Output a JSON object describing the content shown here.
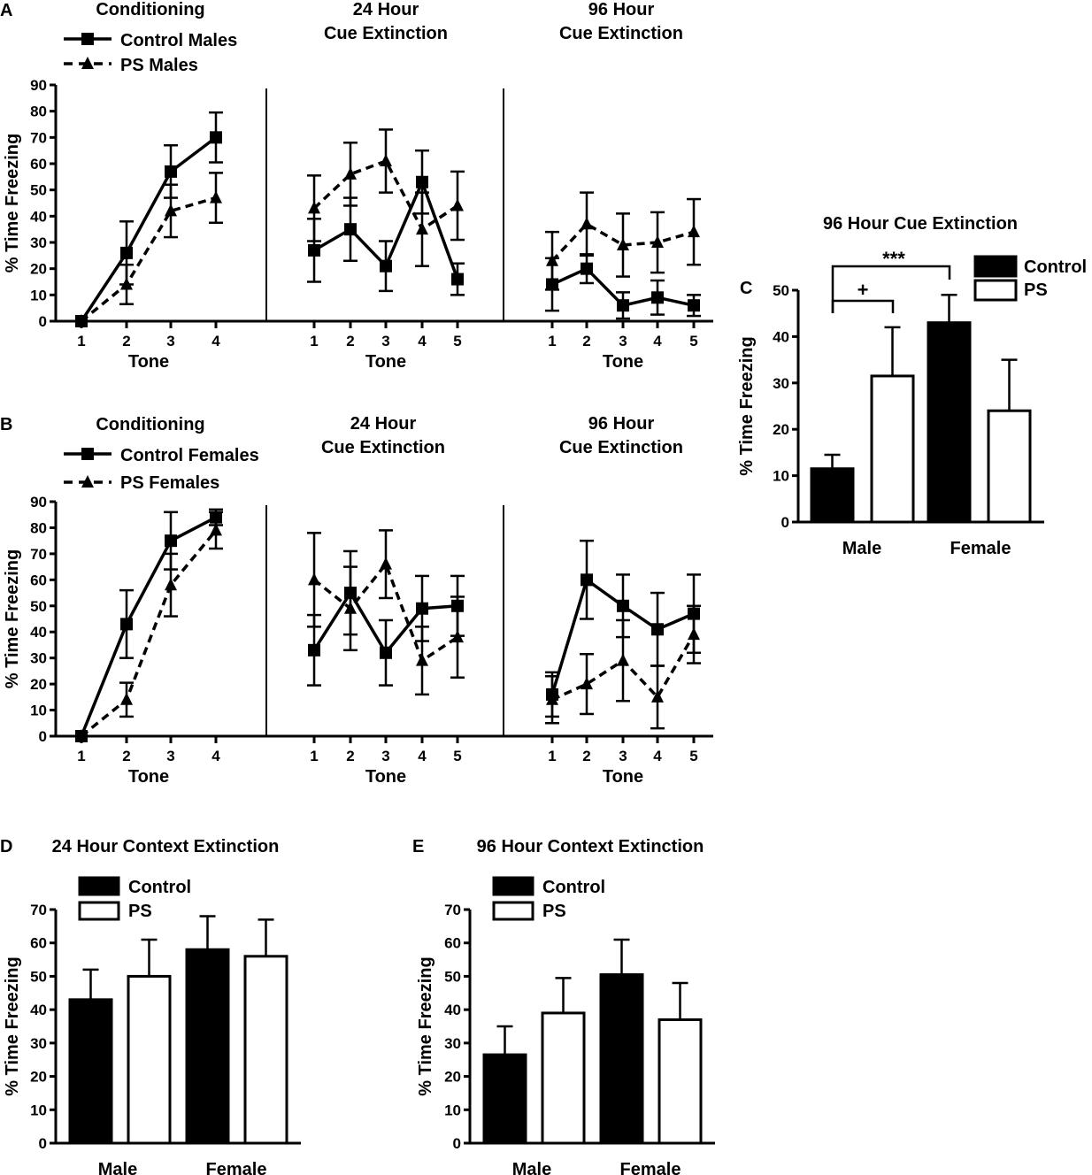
{
  "figure": {
    "panels": {
      "A": {
        "letter": "A",
        "conditioning_title": "Conditioning",
        "ext24_title": [
          "24 Hour",
          "Cue Extinction"
        ],
        "ext96_title": [
          "96 Hour",
          "Cue Extinction"
        ],
        "legend": [
          {
            "label": "Control Males",
            "style": "solid",
            "marker": "square"
          },
          {
            "label": "PS Males",
            "style": "dashed",
            "marker": "triangle"
          }
        ]
      },
      "B": {
        "letter": "B",
        "conditioning_title": "Conditioning",
        "ext24_title": [
          "24 Hour",
          "Cue Extinction"
        ],
        "ext96_title": [
          "96 Hour",
          "Cue Extinction"
        ],
        "legend": [
          {
            "label": "Control Females",
            "style": "solid",
            "marker": "square"
          },
          {
            "label": "PS Females",
            "style": "dashed",
            "marker": "triangle"
          }
        ]
      },
      "C": {
        "letter": "C",
        "title": "96 Hour Cue Extinction",
        "legend": [
          {
            "label": "Control",
            "fill": "#000000"
          },
          {
            "label": "PS",
            "fill": "#ffffff"
          }
        ],
        "significance": [
          {
            "label": "+",
            "between": "Male Control vs Male PS"
          },
          {
            "label": "***",
            "between": "Male Control vs Female Control"
          }
        ]
      },
      "D": {
        "letter": "D",
        "title": "24 Hour Context Extinction",
        "legend": [
          {
            "label": "Control",
            "fill": "#000000"
          },
          {
            "label": "PS",
            "fill": "#ffffff"
          }
        ]
      },
      "E": {
        "letter": "E",
        "title": "96 Hour Context Extinction",
        "legend": [
          {
            "label": "Control",
            "fill": "#000000"
          },
          {
            "label": "PS",
            "fill": "#ffffff"
          }
        ]
      }
    }
  },
  "chart_data": [
    {
      "id": "A",
      "type": "line",
      "ylabel": "% Time Freezing",
      "xlabel": "Tone",
      "ylim": [
        0,
        90
      ],
      "yticks": [
        0,
        10,
        20,
        30,
        40,
        50,
        60,
        70,
        80,
        90
      ],
      "segments": [
        {
          "name": "Conditioning",
          "x": [
            1,
            2,
            3,
            4
          ],
          "series": [
            {
              "name": "Control Males",
              "values": [
                0,
                26,
                57,
                70
              ],
              "err": [
                0,
                12,
                10,
                9.5
              ]
            },
            {
              "name": "PS Males",
              "values": [
                0,
                14,
                42,
                47
              ],
              "err": [
                0,
                7.5,
                10,
                9.5
              ]
            }
          ]
        },
        {
          "name": "24 Hour Cue Extinction",
          "x": [
            1,
            2,
            3,
            4,
            5
          ],
          "series": [
            {
              "name": "Control Males",
              "values": [
                27,
                35,
                21,
                53,
                16
              ],
              "err": [
                12,
                12,
                9.5,
                12,
                6
              ]
            },
            {
              "name": "PS Males",
              "values": [
                43,
                56,
                61,
                35,
                44
              ],
              "err": [
                12.5,
                12,
                12,
                14,
                13
              ]
            }
          ]
        },
        {
          "name": "96 Hour Cue Extinction",
          "x": [
            1,
            2,
            3,
            4,
            5
          ],
          "series": [
            {
              "name": "Control Males",
              "values": [
                14,
                20,
                6,
                9,
                6
              ],
              "err": [
                10,
                5.5,
                5,
                6.5,
                4
              ]
            },
            {
              "name": "PS Males",
              "values": [
                23,
                37,
                29,
                30,
                34
              ],
              "err": [
                11,
                12,
                12,
                11.5,
                12.5
              ]
            }
          ]
        }
      ]
    },
    {
      "id": "B",
      "type": "line",
      "ylabel": "% Time Freezing",
      "xlabel": "Tone",
      "ylim": [
        0,
        90
      ],
      "yticks": [
        0,
        10,
        20,
        30,
        40,
        50,
        60,
        70,
        80,
        90
      ],
      "segments": [
        {
          "name": "Conditioning",
          "x": [
            1,
            2,
            3,
            4
          ],
          "series": [
            {
              "name": "Control Females",
              "values": [
                0,
                43,
                75,
                84
              ],
              "err": [
                0,
                13,
                11,
                3
              ]
            },
            {
              "name": "PS Females",
              "values": [
                0,
                14,
                58,
                79
              ],
              "err": [
                0,
                6.5,
                12,
                7
              ]
            }
          ]
        },
        {
          "name": "24 Hour Cue Extinction",
          "x": [
            1,
            2,
            3,
            4,
            5
          ],
          "series": [
            {
              "name": "Control Females",
              "values": [
                33,
                55,
                32,
                49,
                50
              ],
              "err": [
                13.5,
                16,
                12.5,
                12.5,
                11.5
              ]
            },
            {
              "name": "PS Females",
              "values": [
                60,
                49,
                66,
                29,
                38
              ],
              "err": [
                18,
                16,
                13,
                13,
                15.5
              ]
            }
          ]
        },
        {
          "name": "96 Hour Cue Extinction",
          "x": [
            1,
            2,
            3,
            4,
            5
          ],
          "series": [
            {
              "name": "Control Females",
              "values": [
                16,
                60,
                50,
                41,
                47
              ],
              "err": [
                8.5,
                15,
                12,
                14,
                15
              ]
            },
            {
              "name": "PS Females",
              "values": [
                14,
                20,
                29,
                15,
                39
              ],
              "err": [
                9,
                11.5,
                15.5,
                12,
                11
              ]
            }
          ]
        }
      ]
    },
    {
      "id": "C",
      "type": "bar",
      "title": "96 Hour Cue Extinction",
      "ylabel": "% Time Freezing",
      "categories": [
        "Male",
        "Female"
      ],
      "ylim": [
        0,
        50
      ],
      "yticks": [
        0,
        10,
        20,
        30,
        40,
        50
      ],
      "series": [
        {
          "name": "Control",
          "values": [
            11.5,
            43
          ],
          "err": [
            3,
            6
          ]
        },
        {
          "name": "PS",
          "values": [
            31.5,
            24
          ],
          "err": [
            10.5,
            11
          ]
        }
      ]
    },
    {
      "id": "D",
      "type": "bar",
      "title": "24 Hour Context Extinction",
      "ylabel": "% Time Freezing",
      "categories": [
        "Male",
        "Female"
      ],
      "ylim": [
        0,
        70
      ],
      "yticks": [
        0,
        10,
        20,
        30,
        40,
        50,
        60,
        70
      ],
      "series": [
        {
          "name": "Control",
          "values": [
            43,
            58
          ],
          "err": [
            9,
            10
          ]
        },
        {
          "name": "PS",
          "values": [
            50,
            56
          ],
          "err": [
            11,
            11
          ]
        }
      ]
    },
    {
      "id": "E",
      "type": "bar",
      "title": "96 Hour Context Extinction",
      "ylabel": "% Time Freezing",
      "categories": [
        "Male",
        "Female"
      ],
      "ylim": [
        0,
        70
      ],
      "yticks": [
        0,
        10,
        20,
        30,
        40,
        50,
        60,
        70
      ],
      "series": [
        {
          "name": "Control",
          "values": [
            26.5,
            50.5
          ],
          "err": [
            8.5,
            10.5
          ]
        },
        {
          "name": "PS",
          "values": [
            39,
            37
          ],
          "err": [
            10.5,
            11
          ]
        }
      ]
    }
  ]
}
